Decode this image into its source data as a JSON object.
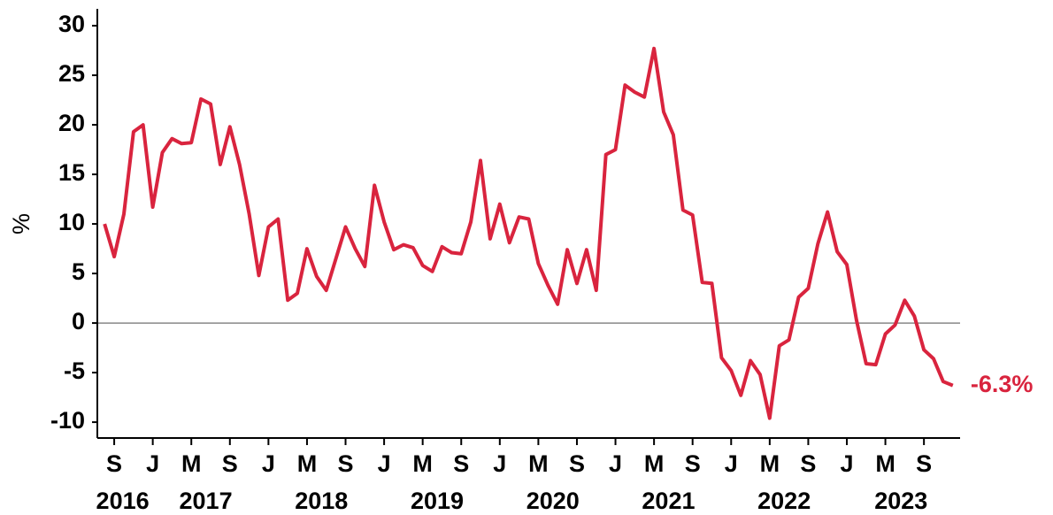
{
  "chart_data": {
    "type": "line",
    "y_label": "%",
    "categories": [
      null,
      "S",
      null,
      null,
      null,
      "J",
      null,
      null,
      null,
      "M",
      null,
      null,
      null,
      "S",
      null,
      null,
      null,
      "J",
      null,
      null,
      null,
      "M",
      null,
      null,
      null,
      "S",
      null,
      null,
      null,
      "J",
      null,
      null,
      null,
      "M",
      null,
      null,
      null,
      "S",
      null,
      null,
      null,
      "J",
      null,
      null,
      null,
      "M",
      null,
      null,
      null,
      "S",
      null,
      null,
      null,
      "J",
      null,
      null,
      null,
      "M",
      null,
      null,
      null,
      "S",
      null,
      null,
      null,
      "J",
      null,
      null,
      null,
      "M",
      null,
      null,
      null,
      "S",
      null,
      null,
      null,
      "J",
      null,
      null,
      null,
      "M",
      null,
      null,
      null,
      "S",
      null,
      null,
      null
    ],
    "x_groups": [
      "2016",
      "2017",
      "2018",
      "2019",
      "2020",
      "2021",
      "2022",
      "2023"
    ],
    "series": [
      {
        "color": "#d9243e",
        "values": [
          10,
          6.7,
          11,
          19.3,
          20,
          11.7,
          17.2,
          18.6,
          18.1,
          18.2,
          22.6,
          22.1,
          16,
          19.8,
          16,
          11,
          4.8,
          9.7,
          10.5,
          2.3,
          3,
          7.5,
          4.7,
          3.3,
          6.5,
          9.7,
          7.5,
          5.7,
          13.9,
          10.2,
          7.4,
          7.9,
          7.6,
          5.8,
          5.2,
          7.7,
          7.1,
          7,
          10.2,
          16.4,
          8.5,
          12,
          8.1,
          10.7,
          10.5,
          6,
          3.8,
          1.9,
          7.4,
          4,
          7.4,
          3.3,
          17,
          17.5,
          24,
          23.3,
          22.8,
          27.7,
          21.3,
          19,
          11.4,
          10.9,
          4.1,
          4,
          -3.5,
          -4.8,
          -7.3,
          -3.8,
          -5.2,
          -9.6,
          -2.3,
          -1.7,
          2.6,
          3.5,
          8,
          11.2,
          7.2,
          5.9,
          0.3,
          -4.1,
          -4.2,
          -1.1,
          -0.2,
          2.3,
          0.7,
          -2.7,
          -3.6,
          -5.9,
          -6.3
        ],
        "value_labels": [
          null,
          null,
          null,
          null,
          null,
          null,
          null,
          null,
          null,
          null,
          null,
          null,
          null,
          null,
          null,
          null,
          null,
          null,
          null,
          null,
          null,
          null,
          null,
          null,
          null,
          null,
          null,
          null,
          null,
          null,
          null,
          null,
          null,
          null,
          null,
          null,
          null,
          null,
          null,
          null,
          null,
          null,
          null,
          null,
          null,
          null,
          null,
          null,
          null,
          null,
          null,
          null,
          null,
          null,
          null,
          null,
          null,
          null,
          null,
          null,
          null,
          null,
          null,
          null,
          null,
          null,
          null,
          null,
          null,
          null,
          null,
          null,
          null,
          null,
          null,
          null,
          null,
          null,
          null,
          null,
          null,
          null,
          null,
          null,
          null,
          null,
          null,
          null,
          "-6.3%"
        ]
      }
    ],
    "ylim": [
      -11.6,
      31.7
    ],
    "yticks": [
      -10,
      -5,
      0,
      5,
      10,
      15,
      20,
      25,
      30
    ],
    "zero_line": true
  }
}
